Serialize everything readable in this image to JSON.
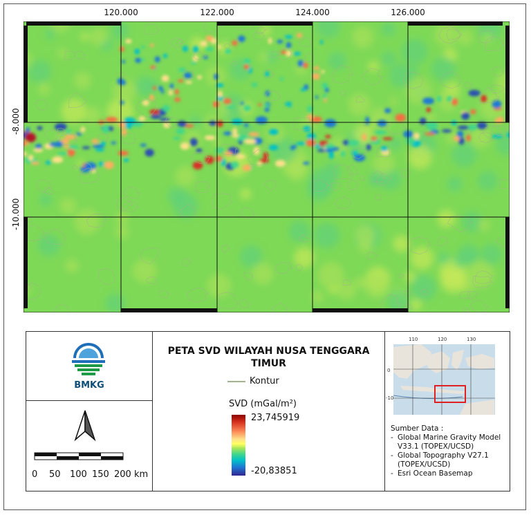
{
  "map": {
    "lon_ticks": [
      "120.000",
      "122.000",
      "124.000",
      "126.000"
    ],
    "lat_ticks": [
      "-8.000",
      "-10.000"
    ]
  },
  "legend": {
    "title": "PETA SVD WILAYAH NUSA TENGGARA TIMUR",
    "contour_label": "Kontur",
    "colorbar_title": "SVD (mGal/m²)",
    "colorbar_max": "23,745919",
    "colorbar_min": "-20,83851",
    "colors": {
      "contour": "#a3b28a",
      "high": "#8b0000",
      "low": "#31248f",
      "background": "#7ed957"
    }
  },
  "logo": {
    "text": "BMKG",
    "icon": "bmkg-logo-icon"
  },
  "north_arrow": {
    "icon": "north-arrow-icon"
  },
  "scale_bar": {
    "labels": [
      "0",
      "50",
      "100",
      "150",
      "200 km"
    ]
  },
  "inset": {
    "lon_ticks": [
      "110",
      "120",
      "130"
    ],
    "lat_ticks": [
      "0",
      "-10"
    ]
  },
  "sources": {
    "heading": "Sumber Data :",
    "items": [
      "Global Marine Gravity Model V33.1 (TOPEX/UCSD)",
      "Global Topography V27.1 (TOPEX/UCSD)",
      "Esri Ocean Basemap"
    ]
  }
}
